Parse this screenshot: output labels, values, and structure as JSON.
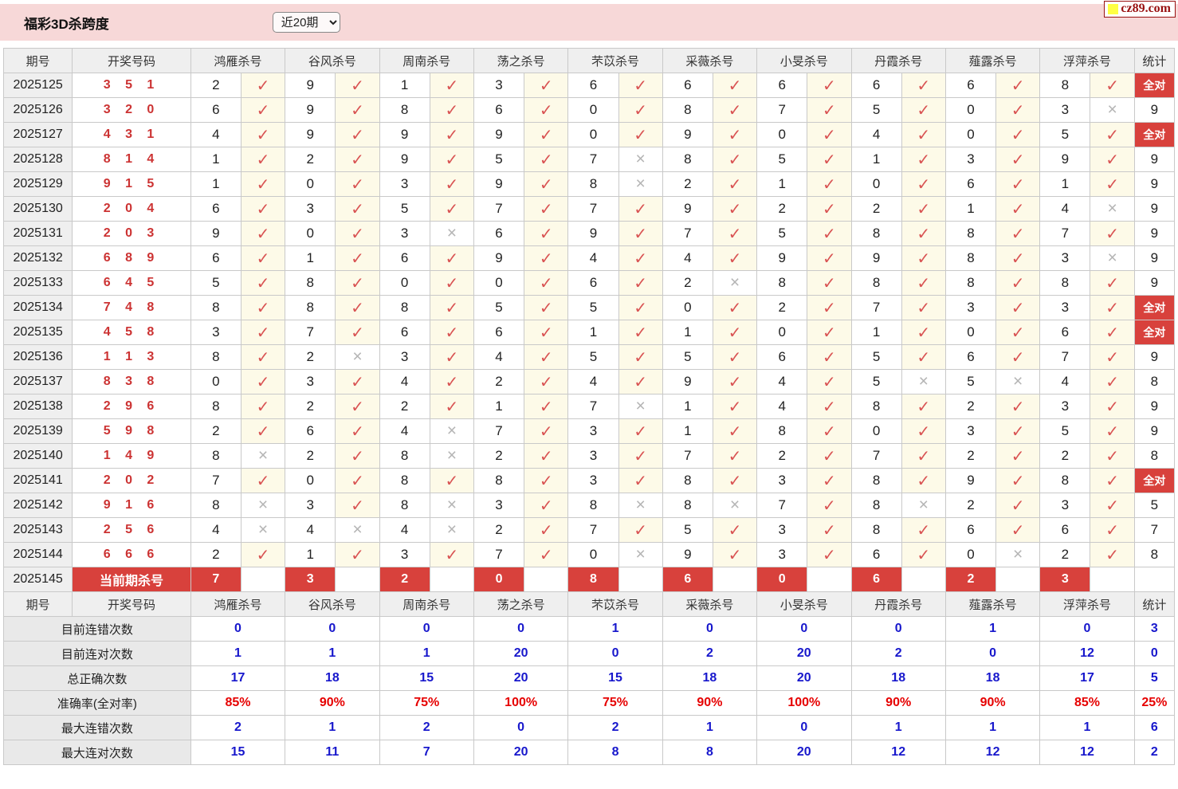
{
  "page": {
    "title": "福彩3D杀跨度",
    "range_select": "近20期",
    "brand": "cz89.com"
  },
  "columns": {
    "period": "期号",
    "numbers": "开奖号码",
    "stat": "统计",
    "experts": [
      "鸿雁杀号",
      "谷风杀号",
      "周南杀号",
      "荡之杀号",
      "芣苡杀号",
      "采薇杀号",
      "小旻杀号",
      "丹霞杀号",
      "薤露杀号",
      "浮萍杀号"
    ]
  },
  "marks": {
    "ok": "✓",
    "bad": "×"
  },
  "colors": {
    "accent_red": "#d8413c",
    "check_red": "#d95353",
    "cross_gray": "#b5b5b5",
    "stat_blue": "#1717cc",
    "pct_red": "#e60000",
    "topbar_pink": "#f7d8d8"
  },
  "rows": [
    {
      "period": "2025125",
      "numbers": "3 5 1",
      "kills": [
        [
          "2",
          true
        ],
        [
          "9",
          true
        ],
        [
          "1",
          true
        ],
        [
          "3",
          true
        ],
        [
          "6",
          true
        ],
        [
          "6",
          true
        ],
        [
          "6",
          true
        ],
        [
          "6",
          true
        ],
        [
          "6",
          true
        ],
        [
          "8",
          true
        ]
      ],
      "stat": "全对"
    },
    {
      "period": "2025126",
      "numbers": "3 2 0",
      "kills": [
        [
          "6",
          true
        ],
        [
          "9",
          true
        ],
        [
          "8",
          true
        ],
        [
          "6",
          true
        ],
        [
          "0",
          true
        ],
        [
          "8",
          true
        ],
        [
          "7",
          true
        ],
        [
          "5",
          true
        ],
        [
          "0",
          true
        ],
        [
          "3",
          false
        ]
      ],
      "stat": "9"
    },
    {
      "period": "2025127",
      "numbers": "4 3 1",
      "kills": [
        [
          "4",
          true
        ],
        [
          "9",
          true
        ],
        [
          "9",
          true
        ],
        [
          "9",
          true
        ],
        [
          "0",
          true
        ],
        [
          "9",
          true
        ],
        [
          "0",
          true
        ],
        [
          "4",
          true
        ],
        [
          "0",
          true
        ],
        [
          "5",
          true
        ]
      ],
      "stat": "全对"
    },
    {
      "period": "2025128",
      "numbers": "8 1 4",
      "kills": [
        [
          "1",
          true
        ],
        [
          "2",
          true
        ],
        [
          "9",
          true
        ],
        [
          "5",
          true
        ],
        [
          "7",
          false
        ],
        [
          "8",
          true
        ],
        [
          "5",
          true
        ],
        [
          "1",
          true
        ],
        [
          "3",
          true
        ],
        [
          "9",
          true
        ]
      ],
      "stat": "9"
    },
    {
      "period": "2025129",
      "numbers": "9 1 5",
      "kills": [
        [
          "1",
          true
        ],
        [
          "0",
          true
        ],
        [
          "3",
          true
        ],
        [
          "9",
          true
        ],
        [
          "8",
          false
        ],
        [
          "2",
          true
        ],
        [
          "1",
          true
        ],
        [
          "0",
          true
        ],
        [
          "6",
          true
        ],
        [
          "1",
          true
        ]
      ],
      "stat": "9"
    },
    {
      "period": "2025130",
      "numbers": "2 0 4",
      "kills": [
        [
          "6",
          true
        ],
        [
          "3",
          true
        ],
        [
          "5",
          true
        ],
        [
          "7",
          true
        ],
        [
          "7",
          true
        ],
        [
          "9",
          true
        ],
        [
          "2",
          true
        ],
        [
          "2",
          true
        ],
        [
          "1",
          true
        ],
        [
          "4",
          false
        ]
      ],
      "stat": "9"
    },
    {
      "period": "2025131",
      "numbers": "2 0 3",
      "kills": [
        [
          "9",
          true
        ],
        [
          "0",
          true
        ],
        [
          "3",
          false
        ],
        [
          "6",
          true
        ],
        [
          "9",
          true
        ],
        [
          "7",
          true
        ],
        [
          "5",
          true
        ],
        [
          "8",
          true
        ],
        [
          "8",
          true
        ],
        [
          "7",
          true
        ]
      ],
      "stat": "9"
    },
    {
      "period": "2025132",
      "numbers": "6 8 9",
      "kills": [
        [
          "6",
          true
        ],
        [
          "1",
          true
        ],
        [
          "6",
          true
        ],
        [
          "9",
          true
        ],
        [
          "4",
          true
        ],
        [
          "4",
          true
        ],
        [
          "9",
          true
        ],
        [
          "9",
          true
        ],
        [
          "8",
          true
        ],
        [
          "3",
          false
        ]
      ],
      "stat": "9"
    },
    {
      "period": "2025133",
      "numbers": "6 4 5",
      "kills": [
        [
          "5",
          true
        ],
        [
          "8",
          true
        ],
        [
          "0",
          true
        ],
        [
          "0",
          true
        ],
        [
          "6",
          true
        ],
        [
          "2",
          false
        ],
        [
          "8",
          true
        ],
        [
          "8",
          true
        ],
        [
          "8",
          true
        ],
        [
          "8",
          true
        ]
      ],
      "stat": "9"
    },
    {
      "period": "2025134",
      "numbers": "7 4 8",
      "kills": [
        [
          "8",
          true
        ],
        [
          "8",
          true
        ],
        [
          "8",
          true
        ],
        [
          "5",
          true
        ],
        [
          "5",
          true
        ],
        [
          "0",
          true
        ],
        [
          "2",
          true
        ],
        [
          "7",
          true
        ],
        [
          "3",
          true
        ],
        [
          "3",
          true
        ]
      ],
      "stat": "全对"
    },
    {
      "period": "2025135",
      "numbers": "4 5 8",
      "kills": [
        [
          "3",
          true
        ],
        [
          "7",
          true
        ],
        [
          "6",
          true
        ],
        [
          "6",
          true
        ],
        [
          "1",
          true
        ],
        [
          "1",
          true
        ],
        [
          "0",
          true
        ],
        [
          "1",
          true
        ],
        [
          "0",
          true
        ],
        [
          "6",
          true
        ]
      ],
      "stat": "全对"
    },
    {
      "period": "2025136",
      "numbers": "1 1 3",
      "kills": [
        [
          "8",
          true
        ],
        [
          "2",
          false
        ],
        [
          "3",
          true
        ],
        [
          "4",
          true
        ],
        [
          "5",
          true
        ],
        [
          "5",
          true
        ],
        [
          "6",
          true
        ],
        [
          "5",
          true
        ],
        [
          "6",
          true
        ],
        [
          "7",
          true
        ]
      ],
      "stat": "9"
    },
    {
      "period": "2025137",
      "numbers": "8 3 8",
      "kills": [
        [
          "0",
          true
        ],
        [
          "3",
          true
        ],
        [
          "4",
          true
        ],
        [
          "2",
          true
        ],
        [
          "4",
          true
        ],
        [
          "9",
          true
        ],
        [
          "4",
          true
        ],
        [
          "5",
          false
        ],
        [
          "5",
          false
        ],
        [
          "4",
          true
        ]
      ],
      "stat": "8"
    },
    {
      "period": "2025138",
      "numbers": "2 9 6",
      "kills": [
        [
          "8",
          true
        ],
        [
          "2",
          true
        ],
        [
          "2",
          true
        ],
        [
          "1",
          true
        ],
        [
          "7",
          false
        ],
        [
          "1",
          true
        ],
        [
          "4",
          true
        ],
        [
          "8",
          true
        ],
        [
          "2",
          true
        ],
        [
          "3",
          true
        ]
      ],
      "stat": "9"
    },
    {
      "period": "2025139",
      "numbers": "5 9 8",
      "kills": [
        [
          "2",
          true
        ],
        [
          "6",
          true
        ],
        [
          "4",
          false
        ],
        [
          "7",
          true
        ],
        [
          "3",
          true
        ],
        [
          "1",
          true
        ],
        [
          "8",
          true
        ],
        [
          "0",
          true
        ],
        [
          "3",
          true
        ],
        [
          "5",
          true
        ]
      ],
      "stat": "9"
    },
    {
      "period": "2025140",
      "numbers": "1 4 9",
      "kills": [
        [
          "8",
          false
        ],
        [
          "2",
          true
        ],
        [
          "8",
          false
        ],
        [
          "2",
          true
        ],
        [
          "3",
          true
        ],
        [
          "7",
          true
        ],
        [
          "2",
          true
        ],
        [
          "7",
          true
        ],
        [
          "2",
          true
        ],
        [
          "2",
          true
        ]
      ],
      "stat": "8"
    },
    {
      "period": "2025141",
      "numbers": "2 0 2",
      "kills": [
        [
          "7",
          true
        ],
        [
          "0",
          true
        ],
        [
          "8",
          true
        ],
        [
          "8",
          true
        ],
        [
          "3",
          true
        ],
        [
          "8",
          true
        ],
        [
          "3",
          true
        ],
        [
          "8",
          true
        ],
        [
          "9",
          true
        ],
        [
          "8",
          true
        ]
      ],
      "stat": "全对"
    },
    {
      "period": "2025142",
      "numbers": "9 1 6",
      "kills": [
        [
          "8",
          false
        ],
        [
          "3",
          true
        ],
        [
          "8",
          false
        ],
        [
          "3",
          true
        ],
        [
          "8",
          false
        ],
        [
          "8",
          false
        ],
        [
          "7",
          true
        ],
        [
          "8",
          false
        ],
        [
          "2",
          true
        ],
        [
          "3",
          true
        ]
      ],
      "stat": "5"
    },
    {
      "period": "2025143",
      "numbers": "2 5 6",
      "kills": [
        [
          "4",
          false
        ],
        [
          "4",
          false
        ],
        [
          "4",
          false
        ],
        [
          "2",
          true
        ],
        [
          "7",
          true
        ],
        [
          "5",
          true
        ],
        [
          "3",
          true
        ],
        [
          "8",
          true
        ],
        [
          "6",
          true
        ],
        [
          "6",
          true
        ]
      ],
      "stat": "7"
    },
    {
      "period": "2025144",
      "numbers": "6 6 6",
      "kills": [
        [
          "2",
          true
        ],
        [
          "1",
          true
        ],
        [
          "3",
          true
        ],
        [
          "7",
          true
        ],
        [
          "0",
          false
        ],
        [
          "9",
          true
        ],
        [
          "3",
          true
        ],
        [
          "6",
          true
        ],
        [
          "0",
          false
        ],
        [
          "2",
          true
        ]
      ],
      "stat": "8"
    }
  ],
  "current_row": {
    "period": "2025145",
    "label": "当前期杀号",
    "kills": [
      "7",
      "3",
      "2",
      "0",
      "8",
      "6",
      "0",
      "6",
      "2",
      "3"
    ],
    "stat": ""
  },
  "summary": [
    {
      "label": "目前连错次数",
      "style": "blue",
      "values": [
        "0",
        "0",
        "0",
        "0",
        "1",
        "0",
        "0",
        "0",
        "1",
        "0",
        "3"
      ]
    },
    {
      "label": "目前连对次数",
      "style": "blue",
      "values": [
        "1",
        "1",
        "1",
        "20",
        "0",
        "2",
        "20",
        "2",
        "0",
        "12",
        "0"
      ]
    },
    {
      "label": "总正确次数",
      "style": "blue",
      "values": [
        "17",
        "18",
        "15",
        "20",
        "15",
        "18",
        "20",
        "18",
        "18",
        "17",
        "5"
      ]
    },
    {
      "label": "准确率(全对率)",
      "style": "red",
      "values": [
        "85%",
        "90%",
        "75%",
        "100%",
        "75%",
        "90%",
        "100%",
        "90%",
        "90%",
        "85%",
        "25%"
      ]
    },
    {
      "label": "最大连错次数",
      "style": "blue",
      "values": [
        "2",
        "1",
        "2",
        "0",
        "2",
        "1",
        "0",
        "1",
        "1",
        "1",
        "6"
      ]
    },
    {
      "label": "最大连对次数",
      "style": "blue",
      "values": [
        "15",
        "11",
        "7",
        "20",
        "8",
        "8",
        "20",
        "12",
        "12",
        "12",
        "2"
      ]
    }
  ]
}
